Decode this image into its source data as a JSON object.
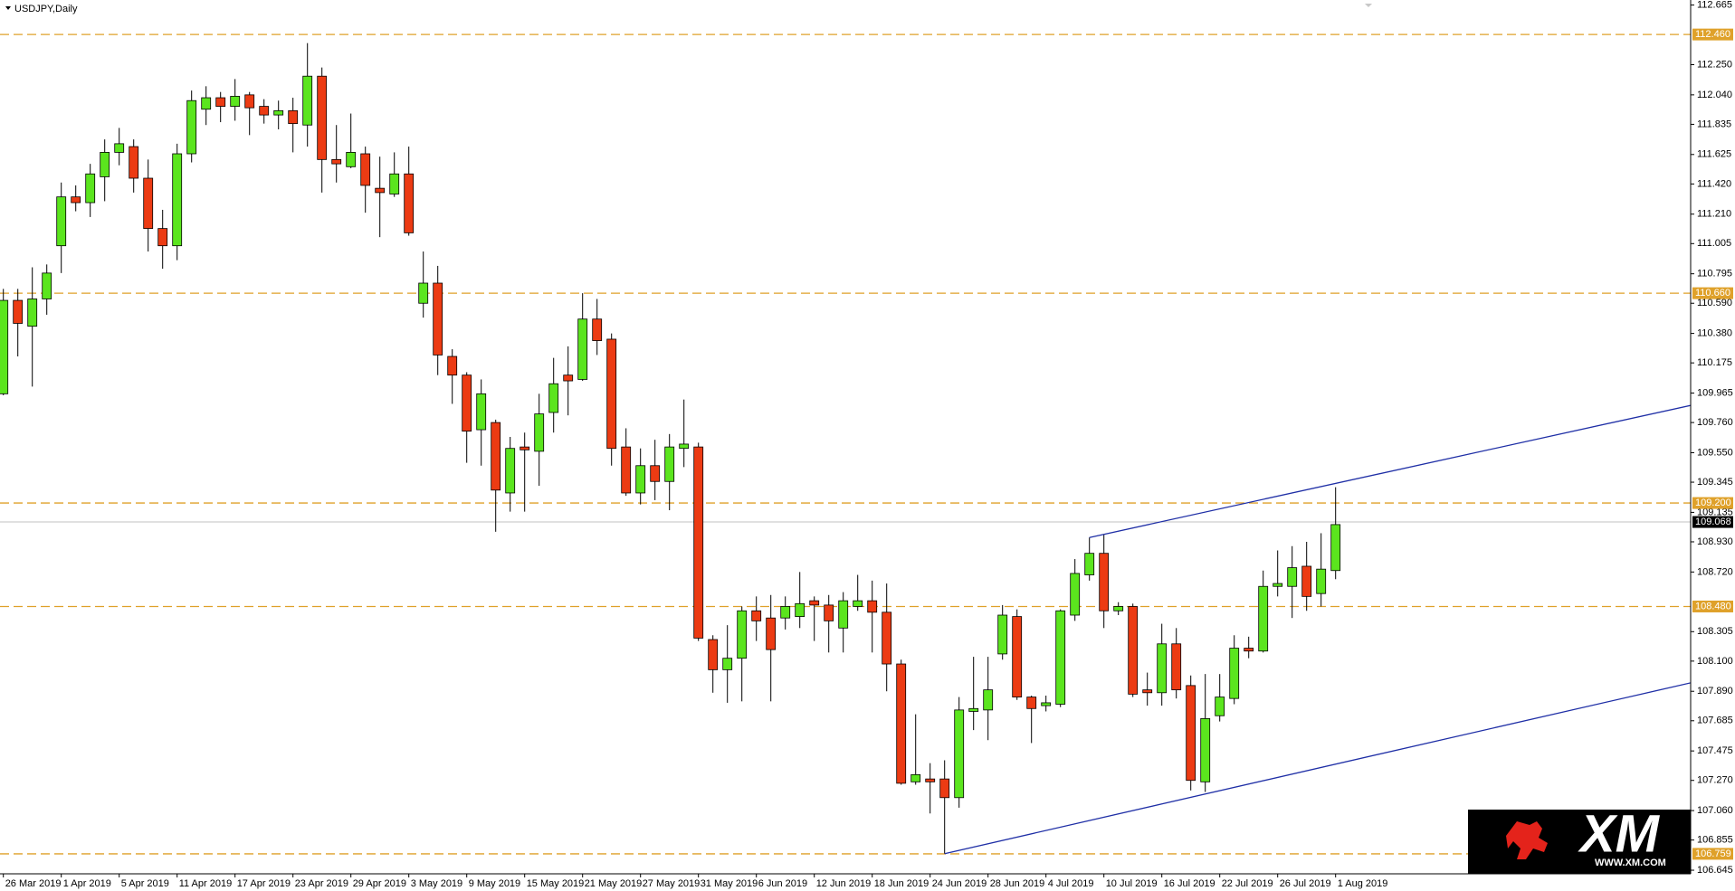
{
  "chart_data": {
    "type": "candlestick",
    "title": "USDJPY,Daily",
    "categories": [
      "26 Mar 2019",
      null,
      null,
      null,
      "1 Apr 2019",
      null,
      null,
      null,
      "5 Apr 2019",
      null,
      null,
      null,
      "11 Apr 2019",
      null,
      null,
      null,
      "17 Apr 2019",
      null,
      null,
      null,
      "23 Apr 2019",
      null,
      null,
      null,
      "29 Apr 2019",
      null,
      null,
      null,
      "3 May 2019",
      null,
      null,
      null,
      "9 May 2019",
      null,
      null,
      null,
      "15 May 2019",
      null,
      null,
      null,
      "21 May 2019",
      null,
      null,
      null,
      "27 May 2019",
      null,
      null,
      null,
      "31 May 2019",
      null,
      null,
      null,
      "6 Jun 2019",
      null,
      null,
      null,
      "12 Jun 2019",
      null,
      null,
      null,
      "18 Jun 2019",
      null,
      null,
      null,
      "24 Jun 2019",
      null,
      null,
      null,
      "28 Jun 2019",
      null,
      null,
      null,
      "4 Jul 2019",
      null,
      null,
      null,
      "10 Jul 2019",
      null,
      null,
      null,
      "16 Jul 2019",
      null,
      null,
      null,
      "22 Jul 2019",
      null,
      null,
      null,
      "26 Jul 2019",
      null,
      null,
      null,
      "1 Aug 2019"
    ],
    "open": [
      109.96,
      110.61,
      110.43,
      110.62,
      110.99,
      111.33,
      111.29,
      111.47,
      111.64,
      111.68,
      111.46,
      111.11,
      110.99,
      111.63,
      111.94,
      112.02,
      111.96,
      112.04,
      111.96,
      111.9,
      111.93,
      111.83,
      112.17,
      111.59,
      111.54,
      111.63,
      111.39,
      111.35,
      111.49,
      110.59,
      110.73,
      110.22,
      110.09,
      109.71,
      109.76,
      109.27,
      109.59,
      109.56,
      109.83,
      110.09,
      110.06,
      110.48,
      110.34,
      109.59,
      109.27,
      109.46,
      109.35,
      109.58,
      109.59,
      108.25,
      108.04,
      108.12,
      108.45,
      108.4,
      108.4,
      108.41,
      108.52,
      108.49,
      108.33,
      108.48,
      108.52,
      108.44,
      108.08,
      107.26,
      107.28,
      107.28,
      107.15,
      107.75,
      107.76,
      108.15,
      108.41,
      107.85,
      107.79,
      107.8,
      108.42,
      108.7,
      108.85,
      108.45,
      108.48,
      107.9,
      107.88,
      108.22,
      107.93,
      107.26,
      107.72,
      107.84,
      108.19,
      108.17,
      108.62,
      108.62,
      108.76,
      108.57,
      108.73
    ],
    "high": [
      110.69,
      110.69,
      110.84,
      110.86,
      111.43,
      111.41,
      111.56,
      111.73,
      111.81,
      111.73,
      111.59,
      111.24,
      111.7,
      112.07,
      112.1,
      112.06,
      112.15,
      112.06,
      112.01,
      112.0,
      112.02,
      112.4,
      112.23,
      111.83,
      111.91,
      111.68,
      111.61,
      111.64,
      111.68,
      110.95,
      110.85,
      110.27,
      110.11,
      110.06,
      109.78,
      109.66,
      109.69,
      109.96,
      110.21,
      110.29,
      110.66,
      110.62,
      110.38,
      109.72,
      109.58,
      109.64,
      109.68,
      109.92,
      109.62,
      108.28,
      108.35,
      108.48,
      108.55,
      108.56,
      108.55,
      108.72,
      108.55,
      108.56,
      108.58,
      108.7,
      108.66,
      108.64,
      108.11,
      107.73,
      107.39,
      107.41,
      107.85,
      108.13,
      108.13,
      108.49,
      108.46,
      107.86,
      107.86,
      108.46,
      108.81,
      108.96,
      108.98,
      108.51,
      108.5,
      108.02,
      108.36,
      108.33,
      108.0,
      108.01,
      108.01,
      108.28,
      108.27,
      108.73,
      108.87,
      108.9,
      108.93,
      108.99,
      109.31
    ],
    "low": [
      109.95,
      110.22,
      110.01,
      110.51,
      110.8,
      111.23,
      111.19,
      111.3,
      111.55,
      111.36,
      110.95,
      110.83,
      110.89,
      111.57,
      111.83,
      111.85,
      111.86,
      111.76,
      111.84,
      111.8,
      111.64,
      111.68,
      111.36,
      111.43,
      111.53,
      111.22,
      111.05,
      111.33,
      111.06,
      110.49,
      110.09,
      109.89,
      109.48,
      109.46,
      109.0,
      109.14,
      109.14,
      109.32,
      109.69,
      109.81,
      110.05,
      110.23,
      109.46,
      109.25,
      109.19,
      109.22,
      109.15,
      109.45,
      108.24,
      107.88,
      107.81,
      107.82,
      108.24,
      107.82,
      108.32,
      108.33,
      108.24,
      108.16,
      108.16,
      108.45,
      108.16,
      107.89,
      107.24,
      107.24,
      107.04,
      106.76,
      107.08,
      107.62,
      107.55,
      108.11,
      107.83,
      107.53,
      107.75,
      107.78,
      108.38,
      108.66,
      108.33,
      108.42,
      107.85,
      107.79,
      107.79,
      107.84,
      107.2,
      107.19,
      107.68,
      107.8,
      108.12,
      108.16,
      108.55,
      108.4,
      108.45,
      108.48,
      108.67
    ],
    "close": [
      110.61,
      110.45,
      110.62,
      110.8,
      111.33,
      111.29,
      111.49,
      111.64,
      111.7,
      111.46,
      111.11,
      110.99,
      111.63,
      112.0,
      112.02,
      111.96,
      112.03,
      111.95,
      111.9,
      111.93,
      111.84,
      112.17,
      111.59,
      111.56,
      111.64,
      111.41,
      111.36,
      111.49,
      111.08,
      110.73,
      110.23,
      110.09,
      109.7,
      109.96,
      109.29,
      109.58,
      109.57,
      109.82,
      110.03,
      110.05,
      110.48,
      110.33,
      109.58,
      109.27,
      109.46,
      109.35,
      109.59,
      109.61,
      108.26,
      108.04,
      108.12,
      108.45,
      108.38,
      108.18,
      108.48,
      108.5,
      108.49,
      108.38,
      108.52,
      108.52,
      108.44,
      108.08,
      107.25,
      107.31,
      107.26,
      107.15,
      107.76,
      107.77,
      107.9,
      108.42,
      107.85,
      107.77,
      107.81,
      108.45,
      108.71,
      108.85,
      108.45,
      108.48,
      107.87,
      107.88,
      108.22,
      107.9,
      107.27,
      107.7,
      107.85,
      108.19,
      108.17,
      108.62,
      108.64,
      108.75,
      108.55,
      108.74,
      109.05
    ],
    "up_color": "#5be51e",
    "down_color": "#ec3b13",
    "ylim": [
      106.62,
      112.7
    ],
    "yticks": [
      112.665,
      {
        "value": 112.25,
        "label": "112.250"
      },
      {
        "value": 112.04,
        "label": "112.040"
      },
      111.835,
      111.625,
      {
        "value": 111.42,
        "label": "111.420"
      },
      {
        "value": 111.21,
        "label": "111.210"
      },
      111.005,
      110.795,
      {
        "value": 110.59,
        "label": "110.590"
      },
      {
        "value": 110.38,
        "label": "110.380"
      },
      110.175,
      109.965,
      {
        "value": 109.76,
        "label": "109.760"
      },
      {
        "value": 109.55,
        "label": "109.550"
      },
      109.345,
      109.135,
      {
        "value": 108.93,
        "label": "108.930"
      },
      {
        "value": 108.72,
        "label": "108.720"
      },
      108.305,
      {
        "value": 108.1,
        "label": "108.100"
      },
      {
        "value": 107.89,
        "label": "107.890"
      },
      107.685,
      107.475,
      {
        "value": 107.27,
        "label": "107.270"
      },
      {
        "value": 107.06,
        "label": "107.060"
      },
      106.855,
      106.645
    ],
    "levels": [
      {
        "value": 112.46,
        "label": "112.460"
      },
      {
        "value": 110.66,
        "label": "110.660"
      },
      {
        "value": 109.2,
        "label": "109.200"
      },
      {
        "value": 108.48,
        "label": "108.480"
      },
      106.759
    ],
    "level_color": "#dfa12a",
    "price_line": 109.068,
    "trendlines": [
      {
        "color": "#1f2fa6",
        "points": [
          [
            75,
            108.96
          ],
          [
            117,
            109.89
          ]
        ]
      },
      {
        "color": "#1f2fa6",
        "points": [
          [
            65,
            106.76
          ],
          [
            117,
            107.96
          ]
        ]
      }
    ]
  },
  "watermark": {
    "brand": "XM",
    "url": "WWW.XM.COM"
  }
}
